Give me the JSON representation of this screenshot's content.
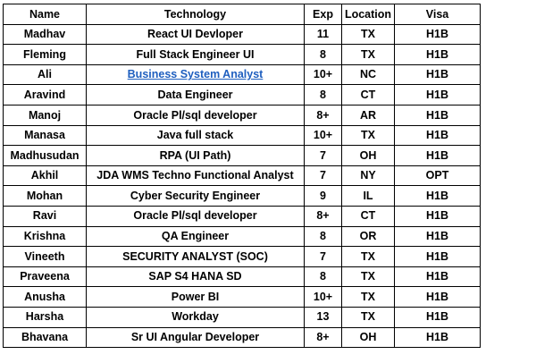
{
  "table": {
    "headers": [
      "Name",
      "Technology",
      "Exp",
      "Location",
      "Visa"
    ],
    "rows": [
      {
        "name": "Madhav",
        "technology": "React UI Devloper",
        "exp": "11",
        "location": "TX",
        "visa": "H1B",
        "link": false
      },
      {
        "name": "Fleming",
        "technology": "Full Stack Engineer UI",
        "exp": "8",
        "location": "TX",
        "visa": "H1B",
        "link": false
      },
      {
        "name": "Ali",
        "technology": "Business System Analyst",
        "exp": "10+",
        "location": "NC",
        "visa": "H1B",
        "link": true
      },
      {
        "name": "Aravind",
        "technology": "Data Engineer",
        "exp": "8",
        "location": "CT",
        "visa": "H1B",
        "link": false
      },
      {
        "name": "Manoj",
        "technology": "Oracle Pl/sql developer",
        "exp": "8+",
        "location": "AR",
        "visa": "H1B",
        "link": false
      },
      {
        "name": "Manasa",
        "technology": "Java full stack",
        "exp": "10+",
        "location": "TX",
        "visa": "H1B",
        "link": false
      },
      {
        "name": "Madhusudan",
        "technology": "RPA (UI Path)",
        "exp": "7",
        "location": "OH",
        "visa": "H1B",
        "link": false
      },
      {
        "name": "Akhil",
        "technology": "JDA WMS Techno Functional Analyst",
        "exp": "7",
        "location": "NY",
        "visa": "OPT",
        "link": false
      },
      {
        "name": "Mohan",
        "technology": "Cyber Security Engineer",
        "exp": "9",
        "location": "IL",
        "visa": "H1B",
        "link": false
      },
      {
        "name": "Ravi",
        "technology": "Oracle Pl/sql developer",
        "exp": "8+",
        "location": "CT",
        "visa": "H1B",
        "link": false
      },
      {
        "name": "Krishna",
        "technology": "QA Engineer",
        "exp": "8",
        "location": "OR",
        "visa": "H1B",
        "link": false
      },
      {
        "name": "Vineeth",
        "technology": "SECURITY ANALYST (SOC)",
        "exp": "7",
        "location": "TX",
        "visa": "H1B",
        "link": false
      },
      {
        "name": "Praveena",
        "technology": "SAP S4 HANA SD",
        "exp": "8",
        "location": "TX",
        "visa": "H1B",
        "link": false
      },
      {
        "name": "Anusha",
        "technology": "Power BI",
        "exp": "10+",
        "location": "TX",
        "visa": "H1B",
        "link": false
      },
      {
        "name": "Harsha",
        "technology": "Workday",
        "exp": "13",
        "location": "TX",
        "visa": "H1B",
        "link": false
      },
      {
        "name": "Bhavana",
        "technology": "Sr UI Angular Developer",
        "exp": "8+",
        "location": "OH",
        "visa": "H1B",
        "link": false
      }
    ]
  },
  "colors": {
    "link": "#1f5fbf",
    "border": "#000000",
    "text": "#000000"
  }
}
